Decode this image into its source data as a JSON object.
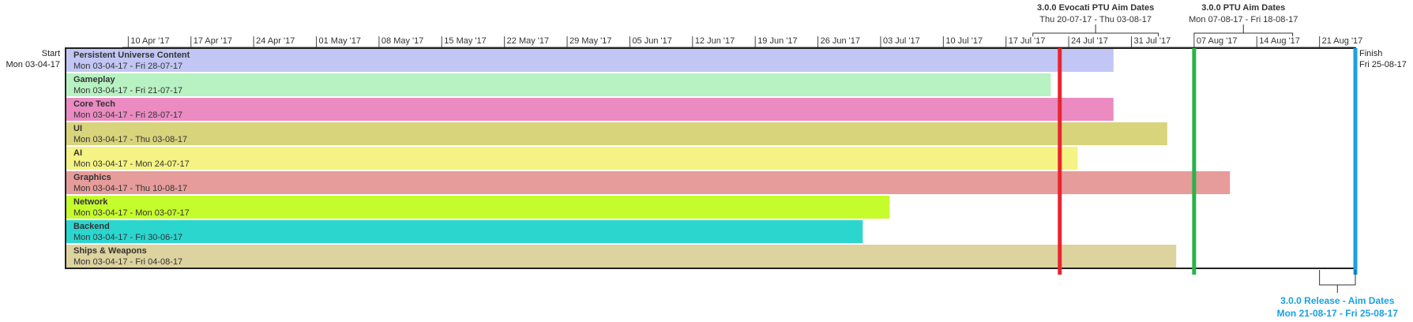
{
  "chart_data": {
    "type": "bar",
    "start": {
      "label": "Start",
      "date": "Mon 03-04-17"
    },
    "finish": {
      "label": "Finish",
      "date": "Fri 25-08-17"
    },
    "ticks": [
      "10 Apr '17",
      "17 Apr '17",
      "24 Apr '17",
      "01 May '17",
      "08 May '17",
      "15 May '17",
      "22 May '17",
      "29 May '17",
      "05 Jun '17",
      "12 Jun '17",
      "19 Jun '17",
      "26 Jun '17",
      "03 Jul '17",
      "10 Jul '17",
      "17 Jul '17",
      "24 Jul '17",
      "31 Jul '17",
      "07 Aug '17",
      "14 Aug '17",
      "21 Aug '17"
    ],
    "tick_dates": [
      "2017-04-10",
      "2017-04-17",
      "2017-04-24",
      "2017-05-01",
      "2017-05-08",
      "2017-05-15",
      "2017-05-22",
      "2017-05-29",
      "2017-06-05",
      "2017-06-12",
      "2017-06-19",
      "2017-06-26",
      "2017-07-03",
      "2017-07-10",
      "2017-07-17",
      "2017-07-24",
      "2017-07-31",
      "2017-08-07",
      "2017-08-14",
      "2017-08-21"
    ],
    "x_range": [
      "2017-04-03",
      "2017-08-25"
    ],
    "tasks": [
      {
        "name": "Persistent Universe Content",
        "range": "Mon 03-04-17 - Fri 28-07-17",
        "start": "2017-04-03",
        "end": "2017-07-28",
        "color": "#c2c6f4"
      },
      {
        "name": "Gameplay",
        "range": "Mon 03-04-17 - Fri 21-07-17",
        "start": "2017-04-03",
        "end": "2017-07-21",
        "color": "#b8f2c2"
      },
      {
        "name": "Core Tech",
        "range": "Mon 03-04-17 - Fri 28-07-17",
        "start": "2017-04-03",
        "end": "2017-07-28",
        "color": "#eb8bc2"
      },
      {
        "name": "UI",
        "range": "Mon 03-04-17 - Thu 03-08-17",
        "start": "2017-04-03",
        "end": "2017-08-03",
        "color": "#d8d47c"
      },
      {
        "name": "AI",
        "range": "Mon 03-04-17 - Mon 24-07-17",
        "start": "2017-04-03",
        "end": "2017-07-24",
        "color": "#f4f383"
      },
      {
        "name": "Graphics",
        "range": "Mon 03-04-17 - Thu 10-08-17",
        "start": "2017-04-03",
        "end": "2017-08-10",
        "color": "#e69c9a"
      },
      {
        "name": "Network",
        "range": "Mon 03-04-17 - Mon 03-07-17",
        "start": "2017-04-03",
        "end": "2017-07-03",
        "color": "#c5fc2c"
      },
      {
        "name": "Backend",
        "range": "Mon 03-04-17 - Fri 30-06-17",
        "start": "2017-04-03",
        "end": "2017-06-30",
        "color": "#2bd6cf"
      },
      {
        "name": "Ships & Weapons",
        "range": "Mon 03-04-17 - Fri 04-08-17",
        "start": "2017-04-03",
        "end": "2017-08-04",
        "color": "#dcd39f"
      }
    ],
    "milestones": [
      {
        "name": "3.0.0 Evocati PTU Aim Dates",
        "range": "Thu 20-07-17 - Thu 03-08-17",
        "from": "2017-07-20",
        "to": "2017-08-03",
        "line_date": "2017-07-23",
        "color": "#e8252f",
        "position": "top"
      },
      {
        "name": "3.0.0 PTU Aim Dates",
        "range": "Mon 07-08-17 - Fri 18-08-17",
        "from": "2017-08-07",
        "to": "2017-08-18",
        "line_date": "2017-08-07",
        "color": "#2bb24a",
        "position": "top"
      },
      {
        "name": "3.0.0 Release - Aim Dates",
        "range": "Mon 21-08-17 - Fri 25-08-17",
        "from": "2017-08-21",
        "to": "2017-08-25",
        "line_date": "2017-08-25",
        "color": "#1ba1e2",
        "position": "bottom"
      }
    ]
  }
}
